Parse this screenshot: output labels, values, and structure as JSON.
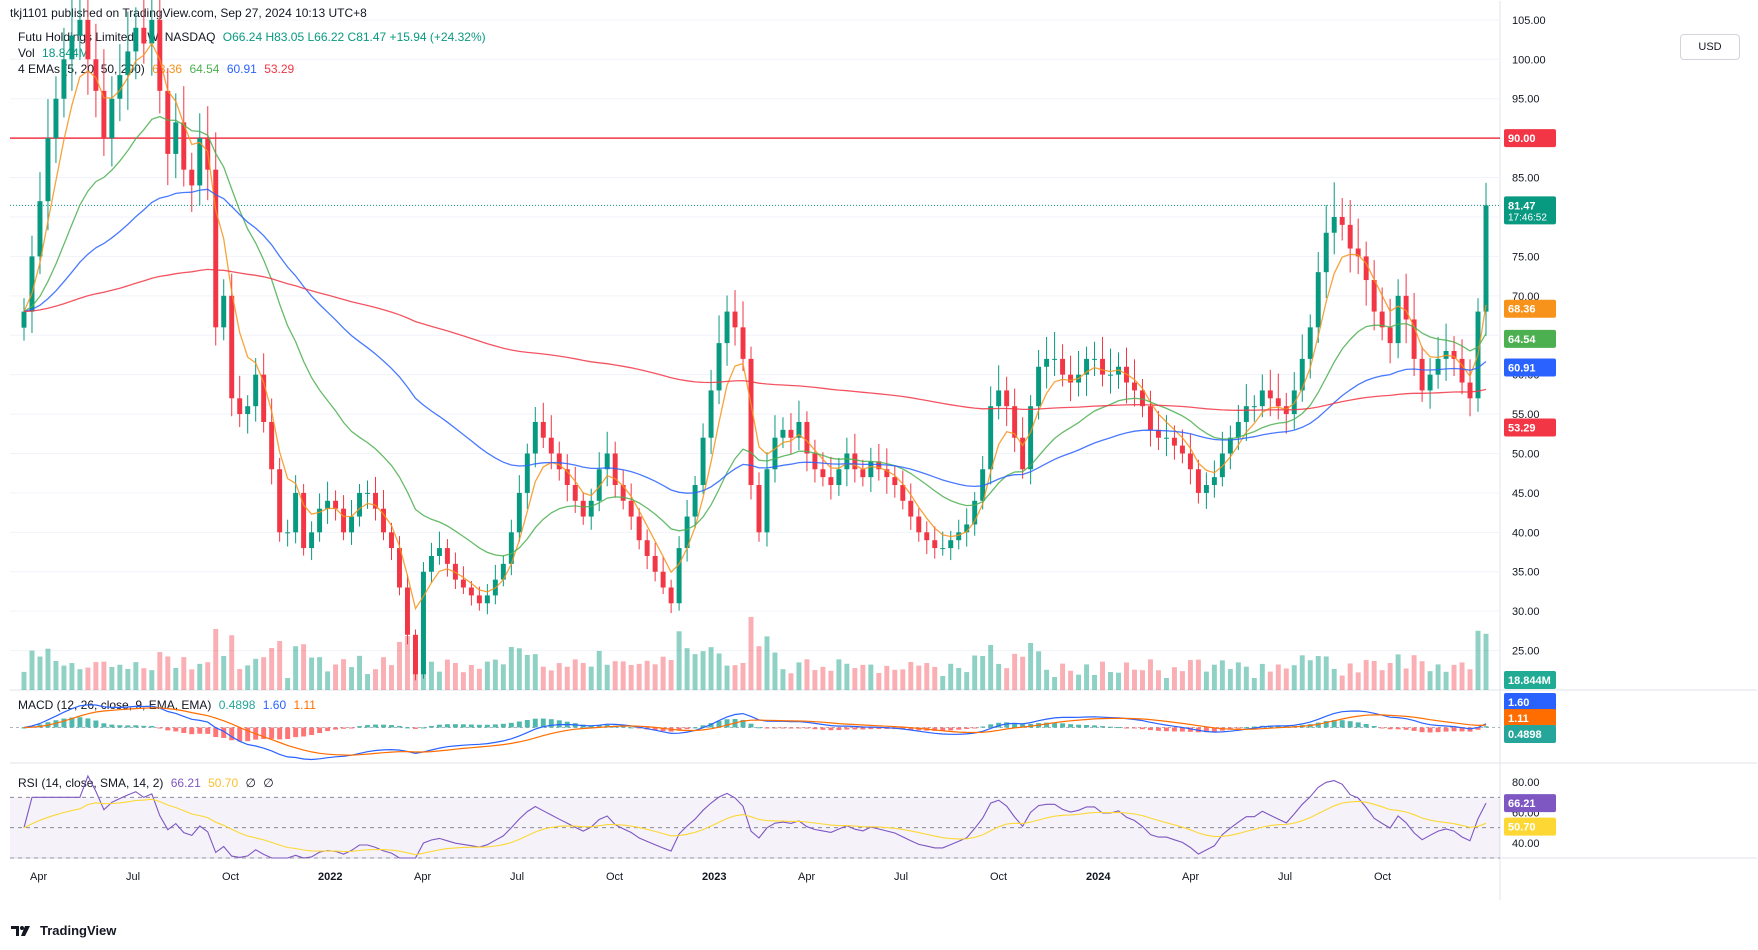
{
  "header": "tkj1101 published on TradingView.com, Sep 27, 2024 10:13 UTC+8",
  "legend": {
    "symbol": "Futu Holdings Limited, 1W, NASDAQ",
    "ohlc": "O66.24  H83.05  L66.22  C81.47  +15.94 (+24.32%)",
    "vol_label": "Vol",
    "vol_value": "18.844M",
    "ema_label": "4 EMAs (5, 20, 50, 200)",
    "ema_values": [
      "68.36",
      "64.54",
      "60.91",
      "53.29"
    ]
  },
  "currency": "USD",
  "price_axis": {
    "ticks": [
      "105.00",
      "100.00",
      "95.00",
      "90.00",
      "85.00",
      "80.00",
      "75.00",
      "70.00",
      "65.00",
      "60.00",
      "55.00",
      "50.00",
      "45.00",
      "40.00",
      "35.00",
      "30.00",
      "25.00"
    ],
    "badges": [
      {
        "label": "90.00",
        "color": "#f23645"
      },
      {
        "label": "81.47",
        "sub": "17:46:52",
        "color": "#089981"
      },
      {
        "label": "68.36",
        "color": "#f7931a"
      },
      {
        "label": "64.54",
        "color": "#4caf50"
      },
      {
        "label": "60.91",
        "color": "#2962ff"
      },
      {
        "label": "53.29",
        "color": "#f23645"
      },
      {
        "label": "18.844M",
        "color": "#22ab94"
      }
    ]
  },
  "time_axis": [
    "Apr",
    "Jul",
    "Oct",
    "2022",
    "Apr",
    "Jul",
    "Oct",
    "2023",
    "Apr",
    "Jul",
    "Oct",
    "2024",
    "Apr",
    "Jul",
    "Oct"
  ],
  "macd": {
    "label": "MACD (12, 26, close, 9, EMA, EMA)",
    "values": [
      "0.4898",
      "1.60",
      "1.11"
    ],
    "badges": [
      {
        "label": "1.60",
        "color": "#2962ff"
      },
      {
        "label": "1.11",
        "color": "#ff6d00"
      },
      {
        "label": "0.4898",
        "color": "#26a69a"
      }
    ]
  },
  "rsi": {
    "label": "RSI (14, close, SMA, 14, 2)",
    "values": [
      "66.21",
      "50.70",
      "∅",
      "∅"
    ],
    "ticks": [
      "80.00",
      "60.00",
      "40.00"
    ],
    "badges": [
      {
        "label": "66.21",
        "color": "#7e57c2"
      },
      {
        "label": "50.70",
        "color": "#fdd835"
      }
    ]
  },
  "footer": "TradingView",
  "chart_data": {
    "type": "candlestick",
    "title": "Futu Holdings Limited, 1W, NASDAQ",
    "ylim": [
      20,
      106
    ],
    "horizontal_line": 90,
    "last_price": 81.47,
    "closes": [
      68,
      75,
      82,
      90,
      95,
      100,
      103,
      105,
      100,
      96,
      90,
      95,
      98,
      101,
      104,
      102,
      105,
      96,
      88,
      92,
      86,
      84,
      90,
      86,
      66,
      70,
      57,
      55,
      56,
      60,
      54,
      48,
      40,
      40,
      45,
      38,
      40,
      43,
      44,
      43,
      40,
      42,
      45,
      45,
      43,
      40,
      38,
      33,
      27,
      22,
      35,
      37,
      38,
      36,
      34,
      33,
      32,
      31,
      32,
      34,
      36,
      40,
      45,
      50,
      54,
      52,
      50,
      48,
      46,
      44,
      42,
      44,
      48,
      50,
      46,
      44,
      42,
      39,
      37,
      35,
      33,
      31,
      38,
      42,
      46,
      52,
      58,
      64,
      68,
      66,
      62,
      46,
      40,
      48,
      52,
      53,
      52,
      54,
      50,
      48,
      47,
      46,
      48,
      50,
      48,
      47,
      49,
      48,
      47,
      46,
      44,
      42,
      40,
      39,
      38,
      38,
      39,
      40,
      41,
      44,
      48,
      56,
      58,
      56,
      52,
      48,
      56,
      61,
      62,
      62,
      60,
      59,
      60,
      62,
      62,
      60,
      60,
      61,
      59,
      58,
      56,
      53,
      52,
      52,
      51,
      50,
      48,
      45,
      46,
      47,
      50,
      52,
      54,
      56,
      56,
      58,
      57,
      56,
      55,
      58,
      62,
      66,
      73,
      78,
      80,
      79,
      76,
      75,
      72,
      68,
      66,
      64,
      70,
      67,
      62,
      58,
      60,
      62,
      63,
      62,
      59,
      57,
      68,
      81.47
    ],
    "ema5_last": 68.36,
    "ema20_last": 64.54,
    "ema50_last": 60.91,
    "ema200_last": 53.29,
    "volume_last": "18.844M",
    "macd_last": {
      "hist": 0.4898,
      "macd": 1.6,
      "signal": 1.11
    },
    "rsi_last": {
      "rsi": 66.21,
      "sma": 50.7
    },
    "rsi_range": [
      30,
      90
    ]
  }
}
